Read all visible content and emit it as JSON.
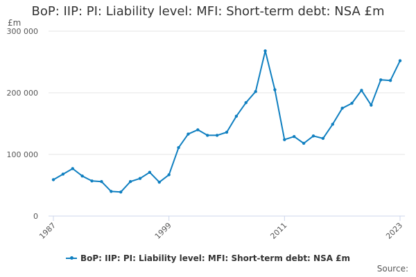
{
  "title": "BoP: IIP: PI: Liability level: MFI: Short-term debt: NSA £m",
  "source_label": "Source:",
  "colors": {
    "series": "#0f7fc0",
    "grid": "#e6e6e6",
    "axis": "#ccd6eb"
  },
  "chart_data": {
    "type": "line",
    "title": "BoP: IIP: PI: Liability level: MFI: Short-term debt: NSA £m",
    "ylabel": "£m",
    "ylim": [
      0,
      300000
    ],
    "yticks": [
      0,
      100000,
      200000,
      300000
    ],
    "ytick_labels": [
      "0",
      "100 000",
      "200 000",
      "300 000"
    ],
    "xlim": [
      1987,
      2023
    ],
    "xticks": [
      1987,
      1999,
      2011,
      2023
    ],
    "xtick_labels": [
      "1987",
      "1999",
      "2011",
      "2023"
    ],
    "grid": true,
    "legend": "bottom",
    "x": [
      1987,
      1988,
      1989,
      1990,
      1991,
      1992,
      1993,
      1994,
      1995,
      1996,
      1997,
      1998,
      1999,
      2000,
      2001,
      2002,
      2003,
      2004,
      2005,
      2006,
      2007,
      2008,
      2009,
      2010,
      2011,
      2012,
      2013,
      2014,
      2015,
      2016,
      2017,
      2018,
      2019,
      2020,
      2021,
      2022,
      2023
    ],
    "series": [
      {
        "name": "BoP: IIP: PI: Liability level: MFI: Short-term debt: NSA £m",
        "values": [
          59000,
          68000,
          77000,
          65000,
          57000,
          56000,
          40000,
          39000,
          56000,
          61000,
          71000,
          55000,
          67000,
          111000,
          133000,
          140000,
          131000,
          131000,
          136000,
          162000,
          184000,
          202000,
          268000,
          205000,
          124000,
          129000,
          118000,
          130000,
          126000,
          149000,
          175000,
          183000,
          204000,
          180000,
          221000,
          220000,
          252000
        ]
      }
    ]
  }
}
